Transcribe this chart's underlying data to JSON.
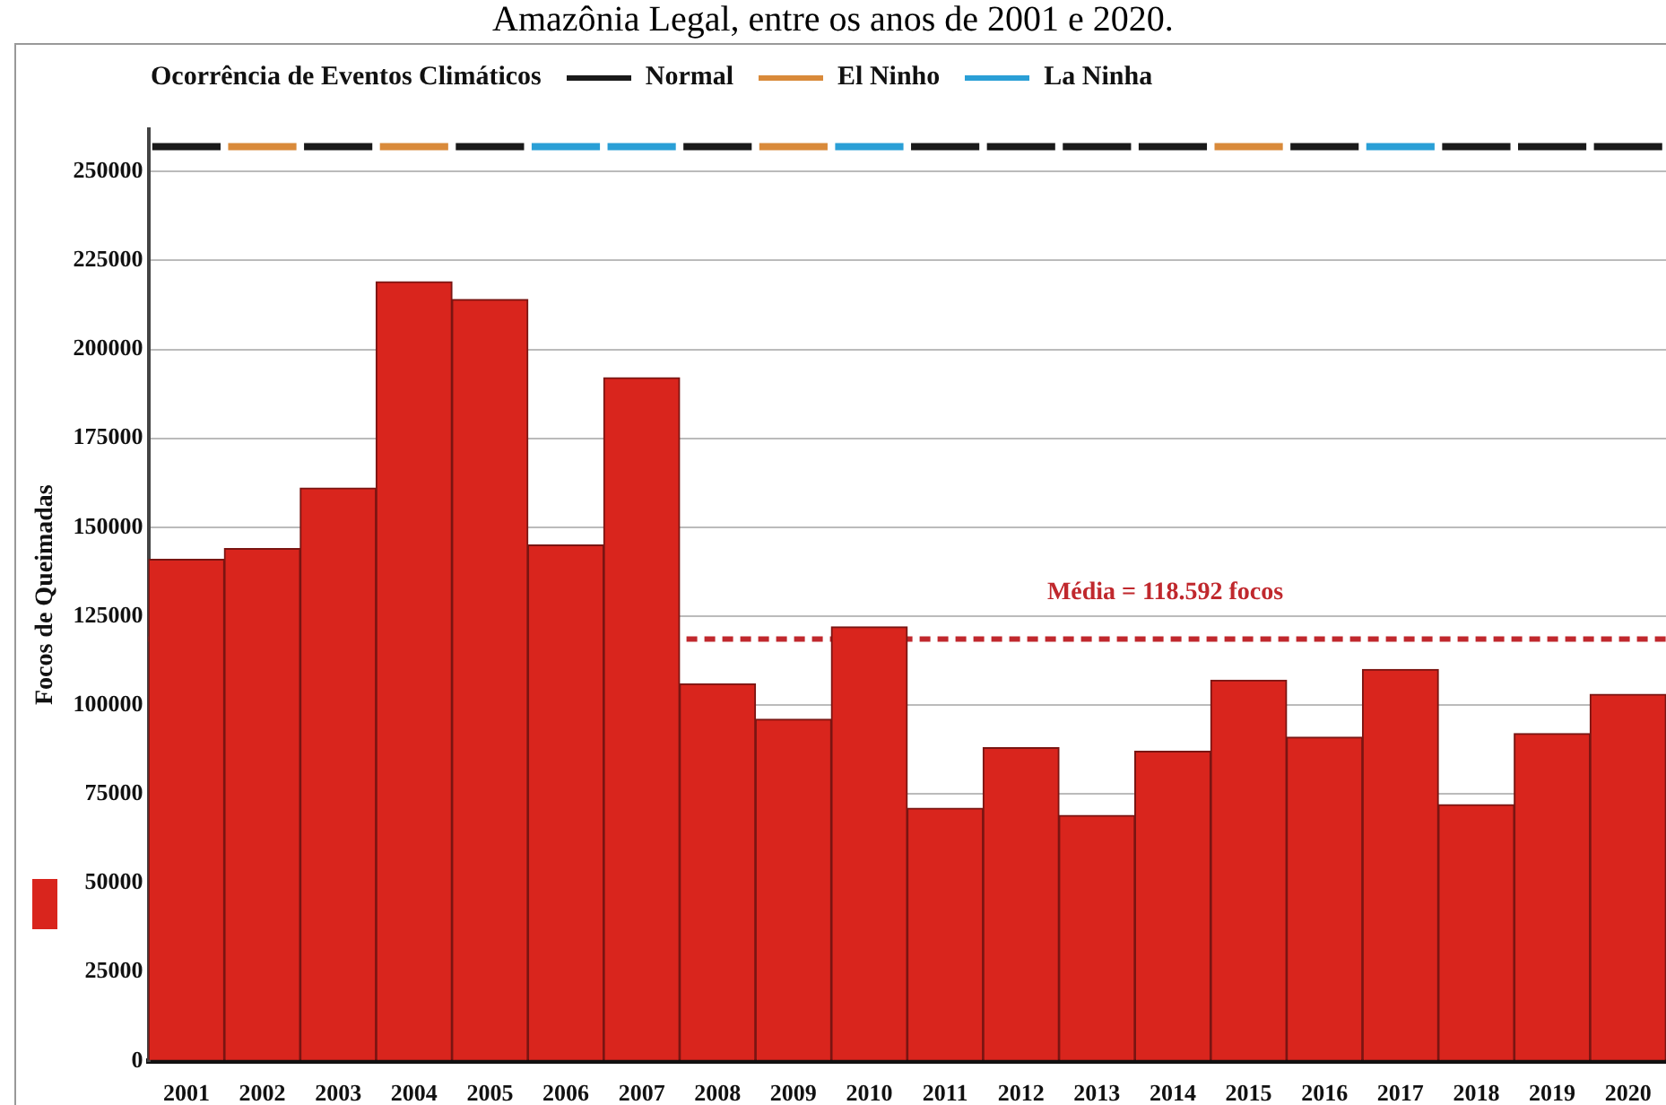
{
  "chart_data": {
    "type": "bar",
    "title": "Amazônia Legal, entre os anos de 2001 e 2020.",
    "ylabel": "Focos de Queimadas",
    "legend_title": "Ocorrência de Eventos Climáticos",
    "categories": [
      "2001",
      "2002",
      "2003",
      "2004",
      "2005",
      "2006",
      "2007",
      "2008",
      "2009",
      "2010",
      "2011",
      "2012",
      "2013",
      "2014",
      "2015",
      "2016",
      "2017",
      "2018",
      "2019",
      "2020"
    ],
    "series": [
      {
        "color": "#d9251d",
        "values": [
          141000,
          144000,
          161000,
          219000,
          214000,
          145000,
          192000,
          106000,
          96000,
          122000,
          71000,
          88000,
          69000,
          87000,
          107000,
          91000,
          110000,
          72000,
          92000,
          103000
        ]
      },
      {
        "name": "Normal",
        "color": "#1a1a1a",
        "base": [
          256000,
          null,
          256000,
          null,
          256000,
          null,
          null,
          256000,
          null,
          null,
          256000,
          256000,
          256000,
          256000,
          null,
          256000,
          null,
          256000,
          256000,
          256000
        ],
        "values": [
          2000,
          null,
          2000,
          null,
          2000,
          null,
          null,
          2000,
          null,
          null,
          2000,
          2000,
          2000,
          2000,
          null,
          2000,
          null,
          2000,
          2000,
          2000
        ]
      },
      {
        "name": "El Ninho",
        "color": "#d98a3a",
        "base": [
          null,
          256000,
          null,
          256000,
          null,
          null,
          null,
          null,
          256000,
          null,
          null,
          null,
          null,
          null,
          256000,
          null,
          null,
          null,
          null,
          null
        ],
        "values": [
          null,
          2000,
          null,
          2000,
          null,
          null,
          null,
          null,
          2000,
          null,
          null,
          null,
          null,
          null,
          2000,
          null,
          null,
          null,
          null,
          null
        ]
      },
      {
        "name": "La Ninha",
        "color": "#2a9fd6",
        "base": [
          null,
          null,
          null,
          null,
          null,
          256000,
          256000,
          null,
          null,
          256000,
          null,
          null,
          null,
          null,
          null,
          null,
          256000,
          null,
          null,
          null
        ],
        "values": [
          null,
          null,
          null,
          null,
          null,
          2000,
          2000,
          null,
          null,
          2000,
          null,
          null,
          null,
          null,
          null,
          null,
          2000,
          null,
          null,
          null
        ]
      }
    ],
    "ylim": [
      0,
      262000
    ],
    "yticks": [
      0,
      25000,
      50000,
      75000,
      100000,
      125000,
      150000,
      175000,
      200000,
      225000,
      250000
    ],
    "ref_lines": [
      {
        "axis": "y",
        "value": 118592,
        "label": "Média = 118.592 focos",
        "color": "#c0282d",
        "line_style": "dashed"
      }
    ],
    "grid": "y",
    "legend": "top"
  }
}
